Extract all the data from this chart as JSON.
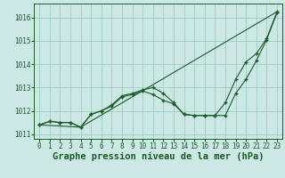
{
  "xlabel": "Graphe pression niveau de la mer (hPa)",
  "bg_color": "#cce8e4",
  "line_color": "#1a5c28",
  "grid_color": "#9ecdc5",
  "ylim": [
    1010.8,
    1016.6
  ],
  "xlim": [
    -0.5,
    23.5
  ],
  "yticks": [
    1011,
    1012,
    1013,
    1014,
    1015,
    1016
  ],
  "xticks": [
    0,
    1,
    2,
    3,
    4,
    5,
    6,
    7,
    8,
    9,
    10,
    11,
    12,
    13,
    14,
    15,
    16,
    17,
    18,
    19,
    20,
    21,
    22,
    23
  ],
  "line1_x": [
    0,
    1,
    2,
    3,
    4,
    5,
    6,
    7,
    8,
    9,
    10,
    11,
    12,
    13,
    14,
    15,
    16,
    17,
    18,
    19,
    20,
    21,
    22,
    23
  ],
  "line1_y": [
    1011.4,
    1011.55,
    1011.5,
    1011.5,
    1011.3,
    1011.85,
    1012.0,
    1012.2,
    1012.6,
    1012.7,
    1012.85,
    1012.7,
    1012.45,
    1012.3,
    1011.85,
    1011.8,
    1011.8,
    1011.8,
    1011.8,
    1012.75,
    1013.35,
    1014.15,
    1015.05,
    1016.2
  ],
  "line2_x": [
    0,
    1,
    2,
    3,
    4,
    5,
    6,
    7,
    8,
    9,
    10,
    11,
    12,
    13,
    14,
    15,
    16,
    17,
    18,
    19,
    20,
    21,
    22,
    23
  ],
  "line2_y": [
    1011.4,
    1011.55,
    1011.5,
    1011.5,
    1011.3,
    1011.85,
    1012.0,
    1012.25,
    1012.65,
    1012.75,
    1012.9,
    1013.0,
    1012.75,
    1012.35,
    1011.85,
    1011.8,
    1011.8,
    1011.8,
    1012.35,
    1013.35,
    1014.1,
    1014.45,
    1015.1,
    1016.25
  ],
  "line3_x": [
    0,
    4,
    23
  ],
  "line3_y": [
    1011.4,
    1011.3,
    1016.25
  ],
  "tick_fontsize": 5.5,
  "xlabel_fontsize": 7.5
}
